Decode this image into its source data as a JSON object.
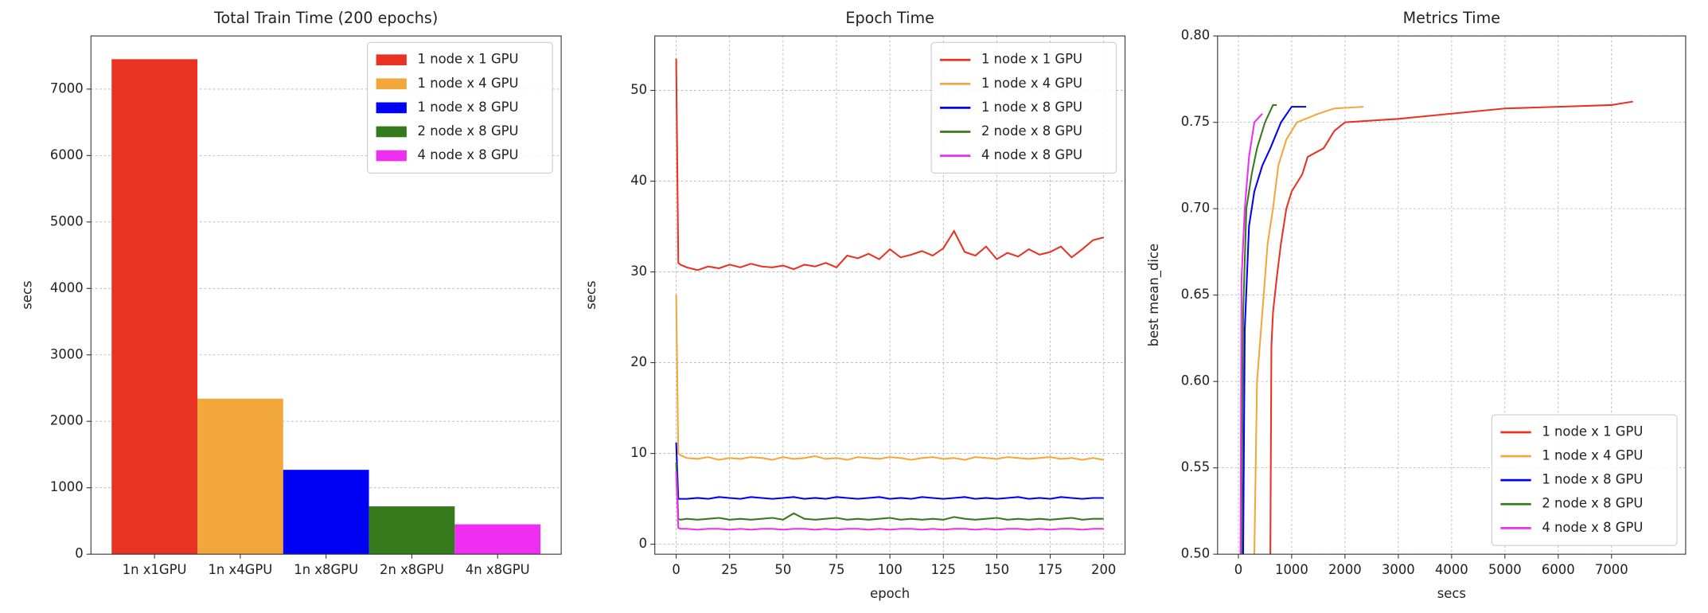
{
  "chart_data": [
    {
      "type": "bar",
      "title": "Total Train Time (200 epochs)",
      "ylabel": "secs",
      "categories": [
        "1n x1GPU",
        "1n x4GPU",
        "1n x8GPU",
        "2n x8GPU",
        "4n x8GPU"
      ],
      "values": [
        7450,
        2340,
        1270,
        720,
        450
      ],
      "colors": [
        "#e83222",
        "#f2a73c",
        "#0000f5",
        "#367a1e",
        "#ee2ef0"
      ],
      "legend": [
        "1 node x 1 GPU",
        "1 node x 4 GPU",
        "1 node x 8 GPU",
        "2 node x 8 GPU",
        "4 node x 8 GPU"
      ],
      "legend_corner": "upper-right",
      "ylim": [
        0,
        7800
      ],
      "yticks": [
        0,
        1000,
        2000,
        3000,
        4000,
        5000,
        6000,
        7000
      ],
      "grid": true
    },
    {
      "type": "line",
      "title": "Epoch Time",
      "xlabel": "epoch",
      "ylabel": "secs",
      "x": [
        0,
        1,
        2,
        5,
        10,
        15,
        20,
        25,
        30,
        35,
        40,
        45,
        50,
        55,
        60,
        65,
        70,
        75,
        80,
        85,
        90,
        95,
        100,
        105,
        110,
        115,
        120,
        125,
        130,
        135,
        140,
        145,
        150,
        155,
        160,
        165,
        170,
        175,
        180,
        185,
        190,
        195,
        200
      ],
      "series": [
        {
          "name": "1 node x 1 GPU",
          "color": "#e83222",
          "values": [
            53.5,
            31,
            30.8,
            30.5,
            30.2,
            30.6,
            30.4,
            30.8,
            30.5,
            30.9,
            30.6,
            30.5,
            30.7,
            30.3,
            30.8,
            30.6,
            31,
            30.5,
            31.8,
            31.5,
            32,
            31.4,
            32.5,
            31.6,
            31.9,
            32.3,
            31.8,
            32.6,
            34.5,
            32.2,
            31.8,
            32.8,
            31.4,
            32.1,
            31.7,
            32.5,
            31.9,
            32.2,
            32.8,
            31.6,
            32.5,
            33.5,
            33.8
          ]
        },
        {
          "name": "1 node x 4 GPU",
          "color": "#f2a73c",
          "values": [
            27.5,
            10,
            9.8,
            9.5,
            9.4,
            9.6,
            9.3,
            9.5,
            9.4,
            9.6,
            9.5,
            9.3,
            9.6,
            9.4,
            9.5,
            9.7,
            9.4,
            9.5,
            9.3,
            9.6,
            9.5,
            9.4,
            9.6,
            9.5,
            9.3,
            9.5,
            9.6,
            9.4,
            9.5,
            9.3,
            9.6,
            9.5,
            9.4,
            9.6,
            9.5,
            9.4,
            9.5,
            9.6,
            9.4,
            9.5,
            9.3,
            9.5,
            9.3
          ]
        },
        {
          "name": "1 node x 8 GPU",
          "color": "#0000f5",
          "values": [
            11.2,
            5,
            5,
            5.0,
            5.1,
            5.0,
            5.2,
            5.1,
            5.0,
            5.2,
            5.1,
            5.0,
            5.1,
            5.2,
            5.0,
            5.1,
            5.0,
            5.2,
            5.1,
            5.0,
            5.1,
            5.2,
            5.0,
            5.1,
            5.0,
            5.2,
            5.1,
            5.0,
            5.1,
            5.2,
            5.0,
            5.1,
            5.0,
            5.1,
            5.2,
            5.0,
            5.1,
            5.0,
            5.2,
            5.1,
            5.0,
            5.1,
            5.1
          ]
        },
        {
          "name": "2 node x 8 GPU",
          "color": "#367a1e",
          "values": [
            9,
            2.8,
            2.7,
            2.8,
            2.7,
            2.8,
            2.9,
            2.7,
            2.8,
            2.7,
            2.8,
            2.9,
            2.7,
            3.4,
            2.8,
            2.7,
            2.8,
            2.9,
            2.7,
            2.8,
            2.7,
            2.8,
            2.9,
            2.7,
            2.8,
            2.7,
            2.8,
            2.7,
            3.0,
            2.8,
            2.7,
            2.8,
            2.9,
            2.7,
            2.8,
            2.7,
            2.8,
            2.7,
            2.8,
            2.9,
            2.7,
            2.8,
            2.8
          ]
        },
        {
          "name": "4 node x 8 GPU",
          "color": "#ee2ef0",
          "values": [
            8,
            1.8,
            1.7,
            1.7,
            1.6,
            1.7,
            1.7,
            1.6,
            1.7,
            1.6,
            1.7,
            1.7,
            1.6,
            1.7,
            1.7,
            1.6,
            1.7,
            1.6,
            1.7,
            1.7,
            1.6,
            1.7,
            1.6,
            1.7,
            1.7,
            1.6,
            1.7,
            1.6,
            1.7,
            1.7,
            1.6,
            1.7,
            1.6,
            1.7,
            1.7,
            1.6,
            1.7,
            1.6,
            1.7,
            1.7,
            1.6,
            1.7,
            1.7
          ]
        }
      ],
      "legend_corner": "upper-right",
      "xlim": [
        -10,
        210
      ],
      "xticks": [
        0,
        25,
        50,
        75,
        100,
        125,
        150,
        175,
        200
      ],
      "ylim": [
        -1.1,
        56
      ],
      "yticks": [
        0,
        10,
        20,
        30,
        40,
        50
      ],
      "grid": true
    },
    {
      "type": "line",
      "title": "Metrics Time",
      "xlabel": "secs",
      "ylabel": "best mean_dice",
      "series": [
        {
          "name": "1 node x 1 GPU",
          "color": "#e83222",
          "x": [
            600,
            620,
            650,
            720,
            800,
            900,
            1000,
            1200,
            1300,
            1600,
            1800,
            2000,
            3000,
            4000,
            5000,
            6000,
            7000,
            7400
          ],
          "values": [
            0.5,
            0.62,
            0.64,
            0.66,
            0.68,
            0.7,
            0.71,
            0.72,
            0.73,
            0.735,
            0.745,
            0.75,
            0.752,
            0.755,
            0.758,
            0.759,
            0.76,
            0.762
          ]
        },
        {
          "name": "1 node x 4 GPU",
          "color": "#f2a73c",
          "x": [
            300,
            350,
            450,
            550,
            650,
            750,
            900,
            1100,
            1500,
            1800,
            2350
          ],
          "values": [
            0.5,
            0.6,
            0.64,
            0.68,
            0.7,
            0.725,
            0.74,
            0.75,
            0.755,
            0.758,
            0.759
          ]
        },
        {
          "name": "1 node x 8 GPU",
          "color": "#0000f5",
          "x": [
            90,
            120,
            200,
            300,
            450,
            600,
            800,
            1000,
            1270
          ],
          "values": [
            0.5,
            0.63,
            0.69,
            0.71,
            0.725,
            0.735,
            0.75,
            0.759,
            0.759
          ]
        },
        {
          "name": "2 node x 8 GPU",
          "color": "#367a1e",
          "x": [
            60,
            90,
            150,
            250,
            350,
            500,
            650,
            720
          ],
          "values": [
            0.5,
            0.64,
            0.7,
            0.72,
            0.735,
            0.75,
            0.76,
            0.76
          ]
        },
        {
          "name": "4 node x 8 GPU",
          "color": "#ee2ef0",
          "x": [
            40,
            60,
            120,
            200,
            300,
            450
          ],
          "values": [
            0.5,
            0.66,
            0.7,
            0.73,
            0.75,
            0.755
          ]
        }
      ],
      "legend_corner": "lower-right",
      "xlim": [
        -390,
        8390
      ],
      "xticks": [
        0,
        1000,
        2000,
        3000,
        4000,
        5000,
        6000,
        7000
      ],
      "ylim": [
        0.5,
        0.8
      ],
      "yticks": [
        {
          "value": 0.5,
          "label": "0.50"
        },
        0.55,
        {
          "value": 0.6,
          "label": "0.60"
        },
        0.65,
        {
          "value": 0.7,
          "label": "0.70"
        },
        0.75,
        {
          "value": 0.8,
          "label": "0.80"
        }
      ],
      "grid": true
    }
  ]
}
